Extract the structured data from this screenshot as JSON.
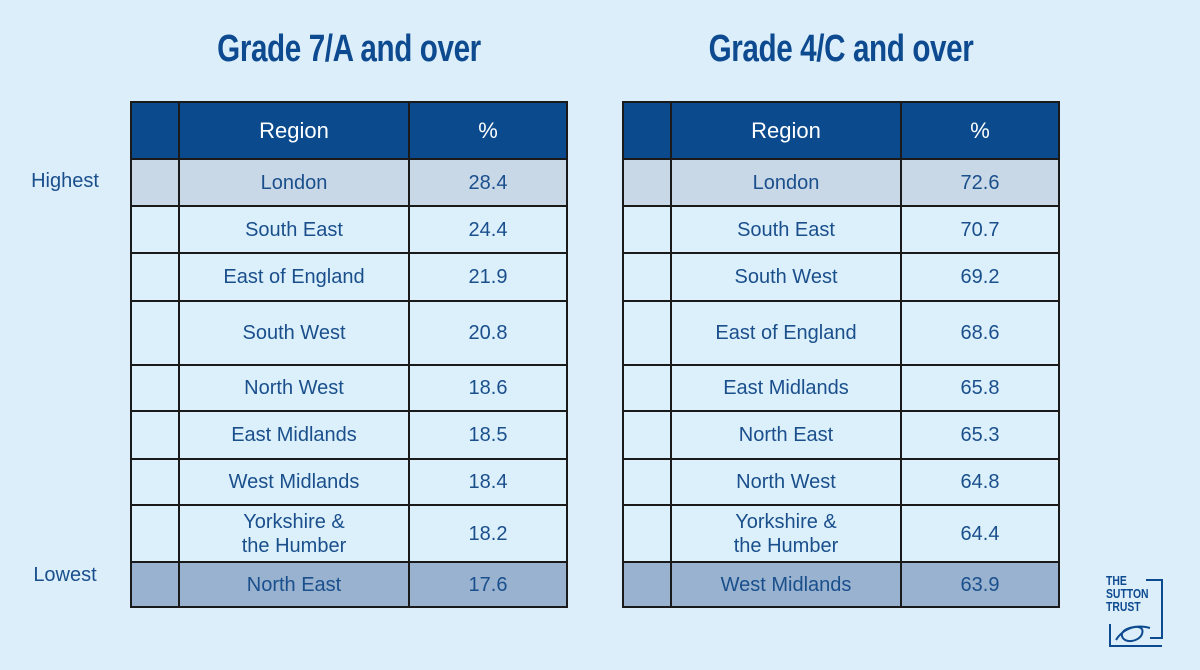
{
  "chart_data": [
    {
      "type": "table",
      "title": "Grade 7/A and over",
      "columns": [
        "Region",
        "%"
      ],
      "rows": [
        {
          "region": "London",
          "value": "28.4"
        },
        {
          "region": "South East",
          "value": "24.4"
        },
        {
          "region": "East of England",
          "value": "21.9"
        },
        {
          "region": "South West",
          "value": "20.8"
        },
        {
          "region": "North West",
          "value": "18.6"
        },
        {
          "region": "East Midlands",
          "value": "18.5"
        },
        {
          "region": "West Midlands",
          "value": "18.4"
        },
        {
          "region": "Yorkshire & the Humber",
          "value": "18.2"
        },
        {
          "region": "North East",
          "value": "17.6"
        }
      ]
    },
    {
      "type": "table",
      "title": "Grade 4/C and over",
      "columns": [
        "Region",
        "%"
      ],
      "rows": [
        {
          "region": "London",
          "value": "72.6"
        },
        {
          "region": "South East",
          "value": "70.7"
        },
        {
          "region": "South West",
          "value": "69.2"
        },
        {
          "region": "East of England",
          "value": "68.6"
        },
        {
          "region": "East Midlands",
          "value": "65.8"
        },
        {
          "region": "North East",
          "value": "65.3"
        },
        {
          "region": "North West",
          "value": "64.8"
        },
        {
          "region": "Yorkshire & the Humber",
          "value": "64.4"
        },
        {
          "region": "West Midlands",
          "value": "63.9"
        }
      ]
    }
  ],
  "labels": {
    "highest": "Highest",
    "lowest": "Lowest"
  },
  "logo": {
    "lines": [
      "THE",
      "SUTTON",
      "TRUST"
    ]
  },
  "colors": {
    "background": "#dbeefa",
    "header": "#0a4a8d",
    "highest_row": "#c9d8e7",
    "lowest_row": "#98b2cf",
    "text": "#1a4f8c"
  }
}
